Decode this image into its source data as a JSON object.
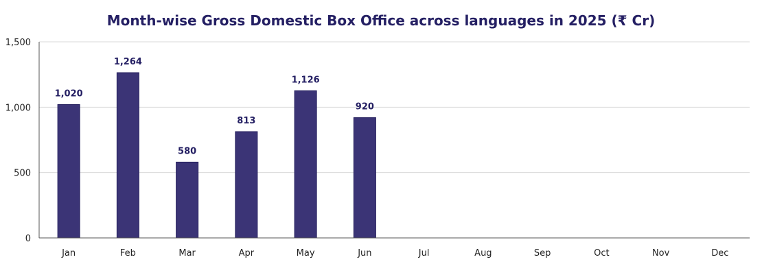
{
  "chart_data": {
    "type": "bar",
    "title": "Month-wise Gross Domestic Box Office across languages in 2025 (₹ Cr)",
    "xlabel": "",
    "ylabel": "",
    "categories": [
      "Jan",
      "Feb",
      "Mar",
      "Apr",
      "May",
      "Jun",
      "Jul",
      "Aug",
      "Sep",
      "Oct",
      "Nov",
      "Dec"
    ],
    "values": [
      1020,
      1264,
      580,
      813,
      1126,
      920,
      null,
      null,
      null,
      null,
      null,
      null
    ],
    "data_labels": [
      "1,020",
      "1,264",
      "580",
      "813",
      "1,126",
      "920",
      "",
      "",
      "",
      "",
      "",
      ""
    ],
    "ylim": [
      0,
      1500
    ],
    "yticks": [
      0,
      500,
      1000,
      1500
    ],
    "ytick_labels": [
      "0",
      "500",
      "1,000",
      "1,500"
    ],
    "grid": true,
    "legend": "none",
    "colors": {
      "bar": "#3b3476",
      "bar_stroke": "#231d5c",
      "title": "#241f63",
      "label": "#241f63",
      "grid": "#d9d9d9",
      "axis": "#555555"
    }
  }
}
